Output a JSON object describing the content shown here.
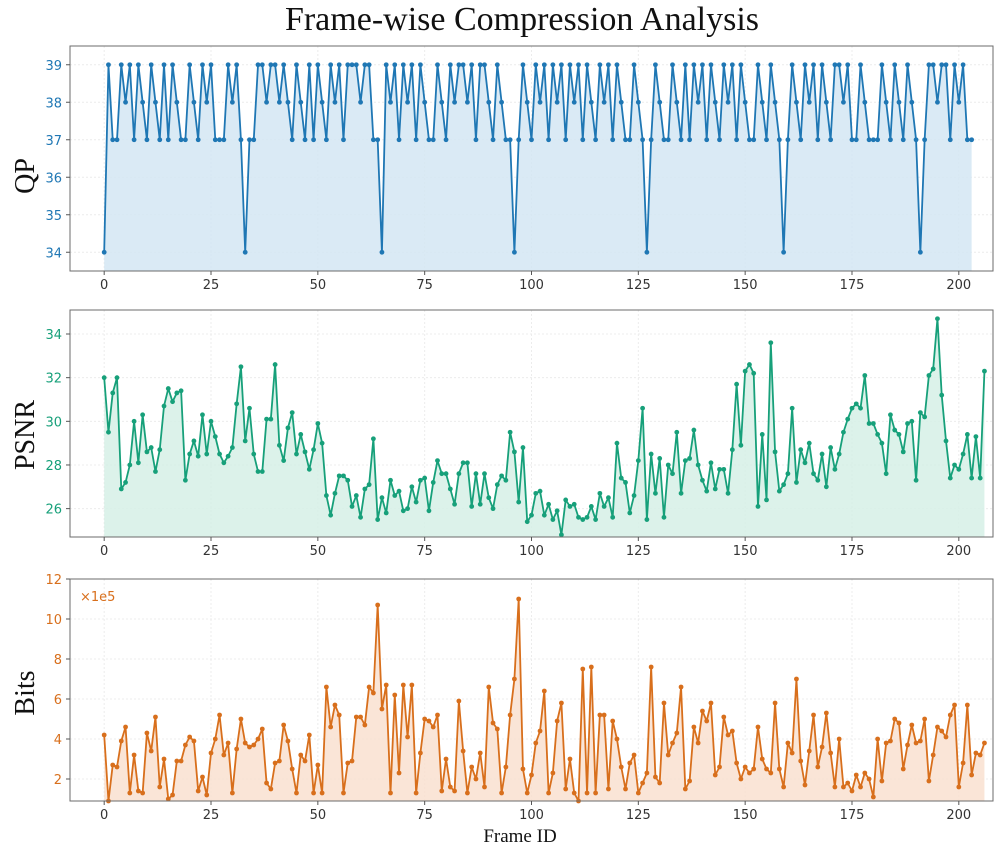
{
  "title": "Frame-wise Compression Analysis",
  "xlabel": "Frame ID",
  "chart_data": [
    {
      "type": "line",
      "name": "qp",
      "ylabel": "QP",
      "color": "#1f77b4",
      "fill": "#d3e6f3",
      "xlim": [
        -8,
        208
      ],
      "ylim": [
        33.5,
        39.5
      ],
      "xticks": [
        0,
        25,
        50,
        75,
        100,
        125,
        150,
        175,
        200
      ],
      "yticks": [
        34,
        35,
        36,
        37,
        38,
        39
      ],
      "x_start": 0,
      "values": [
        34,
        39,
        37,
        37,
        39,
        38,
        39,
        37,
        39,
        38,
        37,
        39,
        38,
        37,
        39,
        37,
        39,
        38,
        37,
        37,
        39,
        38,
        37,
        39,
        38,
        39,
        37,
        37,
        37,
        39,
        38,
        39,
        37,
        34,
        37,
        37,
        39,
        39,
        38,
        39,
        39,
        38,
        39,
        38,
        37,
        39,
        38,
        37,
        39,
        37,
        39,
        38,
        37,
        39,
        38,
        39,
        37,
        39,
        39,
        39,
        38,
        39,
        39,
        37,
        37,
        34,
        39,
        38,
        39,
        37,
        39,
        38,
        39,
        37,
        39,
        38,
        37,
        37,
        39,
        38,
        37,
        39,
        38,
        39,
        39,
        38,
        39,
        37,
        39,
        39,
        38,
        37,
        39,
        38,
        37,
        37,
        34,
        37,
        39,
        38,
        37,
        39,
        38,
        39,
        37,
        39,
        38,
        39,
        37,
        39,
        38,
        39,
        37,
        39,
        38,
        37,
        39,
        38,
        39,
        37,
        39,
        38,
        37,
        37,
        39,
        38,
        37,
        34,
        37,
        39,
        38,
        37,
        37,
        39,
        38,
        37,
        39,
        37,
        39,
        38,
        39,
        37,
        39,
        38,
        37,
        39,
        38,
        39,
        37,
        39,
        38,
        37,
        37,
        39,
        38,
        37,
        39,
        38,
        37,
        34,
        37,
        39,
        38,
        37,
        39,
        38,
        39,
        37,
        39,
        38,
        37,
        39,
        39,
        38,
        39,
        37,
        37,
        39,
        38,
        37,
        37,
        37,
        39,
        38,
        37,
        39,
        38,
        37,
        39,
        38,
        37,
        34,
        37,
        39,
        39,
        38,
        39,
        39,
        37,
        39,
        38,
        39,
        37,
        37
      ],
      "offset_text": ""
    },
    {
      "type": "line",
      "name": "psnr",
      "ylabel": "PSNR",
      "color": "#17a07a",
      "fill": "#d6f0e6",
      "xlim": [
        -8,
        208
      ],
      "ylim": [
        24.7,
        35.1
      ],
      "xticks": [
        0,
        25,
        50,
        75,
        100,
        125,
        150,
        175,
        200
      ],
      "yticks": [
        26,
        28,
        30,
        32,
        34
      ],
      "x_start": 0,
      "values": [
        32.0,
        29.5,
        31.3,
        32.0,
        26.9,
        27.2,
        28.0,
        30.0,
        28.1,
        30.3,
        28.6,
        28.8,
        27.7,
        28.7,
        30.7,
        31.5,
        30.9,
        31.3,
        31.4,
        27.3,
        28.5,
        29.1,
        28.4,
        30.3,
        28.5,
        30.0,
        29.3,
        28.5,
        28.1,
        28.4,
        28.8,
        30.8,
        32.5,
        29.1,
        30.6,
        28.5,
        27.7,
        27.7,
        30.1,
        30.1,
        32.6,
        28.9,
        28.2,
        29.7,
        30.4,
        28.5,
        29.4,
        28.6,
        27.8,
        28.7,
        29.9,
        29.0,
        26.6,
        25.7,
        26.7,
        27.5,
        27.5,
        27.3,
        26.1,
        26.6,
        25.6,
        26.9,
        27.1,
        29.2,
        25.5,
        26.5,
        25.8,
        27.3,
        26.6,
        26.8,
        25.9,
        26.0,
        27.0,
        26.3,
        27.3,
        27.4,
        25.9,
        27.2,
        28.2,
        27.6,
        27.6,
        26.9,
        26.2,
        27.6,
        28.1,
        28.1,
        26.1,
        27.6,
        26.2,
        27.6,
        26.5,
        26.0,
        27.1,
        27.5,
        27.3,
        29.5,
        28.6,
        26.3,
        28.8,
        25.4,
        25.7,
        26.7,
        26.8,
        25.7,
        26.2,
        25.5,
        25.9,
        24.8,
        26.4,
        26.1,
        26.2,
        25.6,
        25.5,
        25.6,
        26.1,
        25.5,
        26.7,
        26.1,
        26.5,
        25.6,
        29.0,
        27.4,
        27.2,
        25.8,
        26.6,
        28.2,
        30.6,
        25.5,
        28.5,
        26.7,
        28.3,
        25.6,
        28.0,
        27.6,
        29.5,
        26.7,
        28.2,
        28.3,
        29.6,
        28.0,
        27.3,
        26.8,
        28.1,
        26.9,
        27.8,
        27.8,
        26.7,
        28.7,
        31.7,
        28.9,
        32.3,
        32.6,
        32.2,
        26.1,
        29.4,
        26.4,
        33.6,
        28.6,
        26.8,
        27.1,
        27.6,
        30.6,
        27.2,
        28.7,
        28.1,
        29.0,
        27.6,
        27.3,
        28.5,
        27.0,
        28.8,
        27.8,
        28.5,
        29.5,
        30.1,
        30.6,
        30.8,
        30.6,
        32.1,
        29.9,
        29.9,
        29.4,
        29.0,
        27.6,
        30.3,
        29.6,
        29.4,
        28.6,
        29.9,
        30.0,
        27.3,
        30.4,
        30.2,
        32.1,
        32.4,
        34.7,
        31.2,
        29.1,
        27.4,
        28.0,
        27.8,
        28.5,
        29.4,
        27.4,
        29.3,
        27.4,
        32.3
      ],
      "offset_text": ""
    },
    {
      "type": "line",
      "name": "bits",
      "ylabel": "Bits",
      "color": "#d86f1c",
      "fill": "#f9e1d0",
      "xlim": [
        -8,
        208
      ],
      "ylim": [
        0.9,
        12.0
      ],
      "xticks": [
        0,
        25,
        50,
        75,
        100,
        125,
        150,
        175,
        200
      ],
      "yticks": [
        2,
        4,
        6,
        8,
        10,
        12
      ],
      "x_start": 0,
      "values": [
        4.2,
        0.9,
        2.7,
        2.6,
        3.9,
        4.6,
        1.3,
        3.2,
        1.4,
        1.3,
        4.3,
        3.4,
        5.1,
        1.6,
        3.0,
        1.0,
        1.2,
        2.9,
        2.9,
        3.7,
        4.1,
        3.9,
        1.4,
        2.1,
        1.2,
        3.3,
        4.0,
        5.2,
        3.2,
        3.8,
        1.3,
        3.5,
        5.0,
        3.8,
        3.6,
        3.7,
        4.0,
        4.5,
        1.8,
        1.5,
        2.8,
        2.9,
        4.7,
        3.9,
        2.5,
        1.3,
        3.2,
        2.9,
        4.2,
        1.3,
        2.7,
        1.3,
        6.6,
        4.6,
        5.7,
        5.2,
        1.3,
        2.8,
        2.9,
        5.1,
        5.1,
        4.7,
        6.6,
        6.3,
        10.7,
        5.5,
        6.7,
        1.3,
        6.2,
        2.3,
        6.7,
        4.1,
        6.7,
        1.3,
        3.3,
        5.0,
        4.9,
        4.6,
        5.2,
        1.4,
        3.0,
        1.6,
        1.4,
        5.9,
        3.4,
        1.3,
        2.6,
        2.0,
        3.3,
        1.6,
        6.6,
        4.8,
        4.5,
        1.3,
        2.6,
        5.2,
        7.0,
        11.0,
        2.5,
        1.3,
        2.2,
        3.8,
        4.4,
        6.4,
        1.3,
        2.3,
        4.9,
        5.8,
        1.5,
        3.0,
        1.3,
        0.9,
        7.5,
        1.3,
        7.6,
        1.3,
        5.2,
        5.2,
        1.5,
        4.9,
        4.0,
        2.6,
        1.5,
        2.8,
        3.2,
        1.3,
        1.8,
        2.3,
        7.6,
        2.1,
        1.8,
        5.8,
        3.2,
        3.8,
        4.3,
        6.6,
        1.5,
        1.9,
        4.6,
        3.8,
        5.4,
        4.9,
        5.8,
        2.2,
        2.6,
        5.1,
        4.2,
        4.4,
        2.8,
        2.0,
        2.6,
        2.3,
        2.5,
        4.6,
        3.0,
        2.5,
        2.3,
        5.8,
        2.5,
        1.6,
        3.8,
        3.3,
        7.0,
        2.9,
        1.7,
        3.4,
        5.2,
        2.6,
        3.6,
        5.3,
        3.3,
        1.6,
        4.0,
        1.6,
        1.8,
        1.4,
        2.2,
        1.6,
        2.3,
        2.0,
        1.1,
        4.0,
        1.9,
        3.8,
        3.9,
        5.0,
        4.8,
        2.5,
        3.7,
        4.7,
        3.8,
        3.9,
        5.0,
        1.9,
        3.2,
        4.6,
        4.4,
        4.1,
        5.2,
        5.7,
        1.6,
        2.8,
        5.7,
        2.2,
        3.3,
        3.2,
        3.8
      ],
      "offset_text": "×1e5"
    }
  ]
}
